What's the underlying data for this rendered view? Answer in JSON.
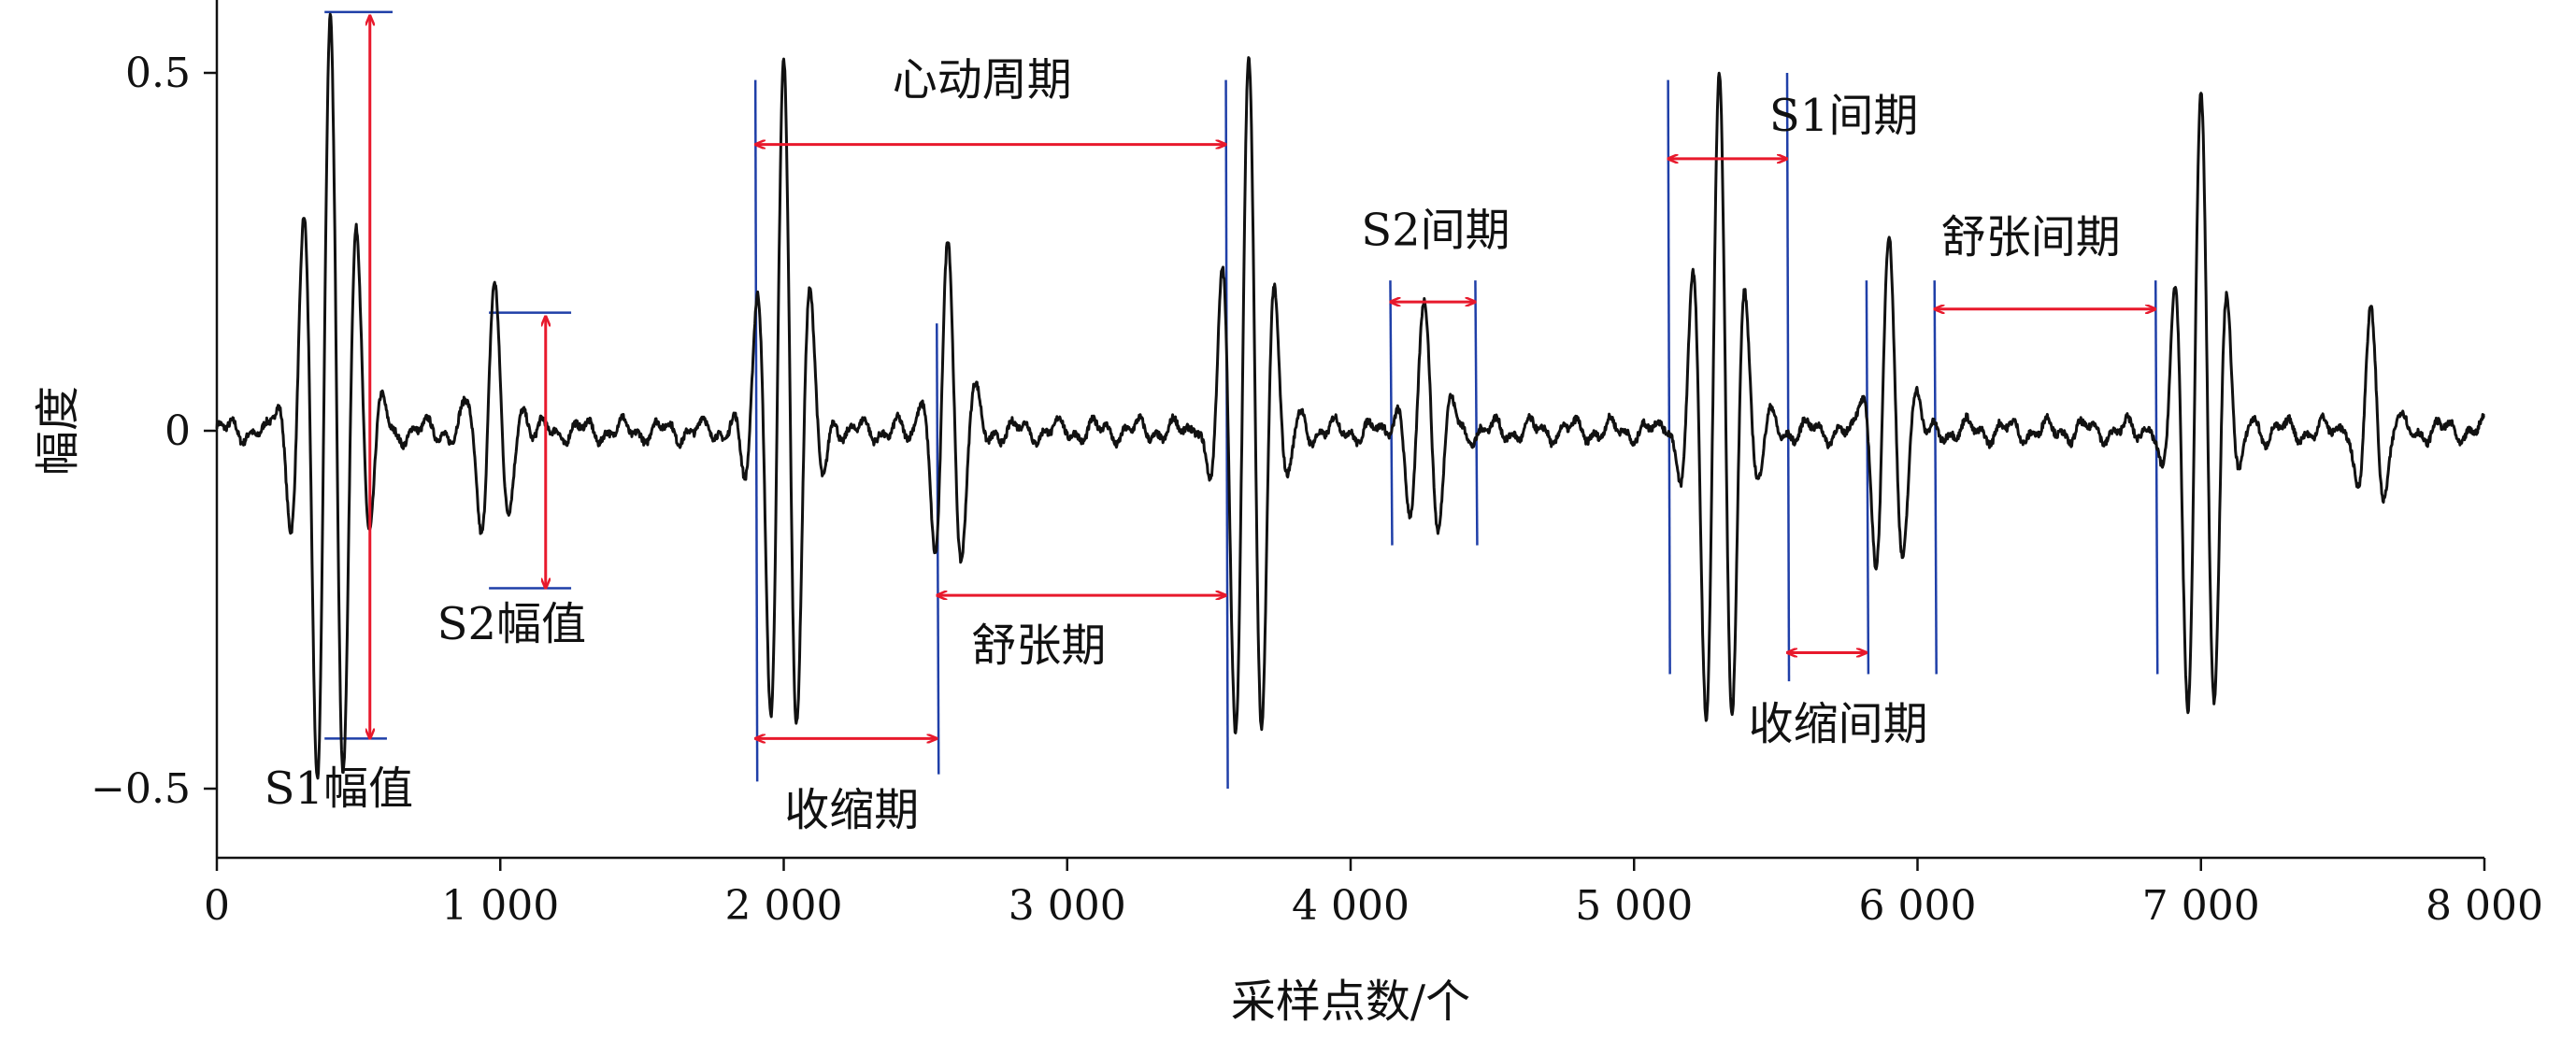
{
  "chart_data": {
    "type": "line",
    "title": "",
    "xlabel": "采样点数/个",
    "ylabel": "幅度",
    "xlim": [
      0,
      8000
    ],
    "ylim": [
      -0.6,
      0.6
    ],
    "x_ticks": [
      0,
      1000,
      2000,
      3000,
      4000,
      5000,
      6000,
      7000,
      8000
    ],
    "x_tick_labels": [
      "0",
      "1 000",
      "2 000",
      "3 000",
      "4 000",
      "5 000",
      "6 000",
      "7 000",
      "8 000"
    ],
    "y_ticks": [
      0.5,
      0,
      -0.5
    ],
    "y_tick_labels": [
      "0.5",
      "0",
      "−0.5"
    ],
    "grid": false,
    "colors": {
      "signal": "#111111",
      "annotation_arrow": "#e8192c",
      "boundary_line": "#1f3fa8",
      "axis": "#111111"
    },
    "series": [
      {
        "signal_events": [
          {
            "center": 400,
            "amplitude": 0.58,
            "frequency_hz": 0.0105,
            "width": 80,
            "kind": "S1"
          },
          {
            "center": 980,
            "amplitude": 0.2,
            "frequency_hz": 0.0095,
            "width": 55,
            "kind": "S2"
          },
          {
            "center": 2000,
            "amplitude": 0.5,
            "frequency_hz": 0.0105,
            "width": 70,
            "kind": "S1"
          },
          {
            "center": 2580,
            "amplitude": 0.26,
            "frequency_hz": 0.01,
            "width": 55,
            "kind": "S2"
          },
          {
            "center": 3640,
            "amplitude": 0.52,
            "frequency_hz": 0.0105,
            "width": 70,
            "kind": "S1"
          },
          {
            "center": 4260,
            "amplitude": 0.19,
            "frequency_hz": 0.0095,
            "width": 55,
            "kind": "S2"
          },
          {
            "center": 5300,
            "amplitude": 0.5,
            "frequency_hz": 0.0105,
            "width": 70,
            "kind": "S1"
          },
          {
            "center": 5900,
            "amplitude": 0.26,
            "frequency_hz": 0.01,
            "width": 55,
            "kind": "S2"
          },
          {
            "center": 7000,
            "amplitude": 0.47,
            "frequency_hz": 0.0105,
            "width": 70,
            "kind": "S1"
          },
          {
            "center": 7600,
            "amplitude": 0.16,
            "frequency_hz": 0.0095,
            "width": 45,
            "kind": "S2"
          }
        ]
      }
    ],
    "boundaries": [
      {
        "x": 1900,
        "y_top": 0.49,
        "y_bottom": -0.49
      },
      {
        "x": 2540,
        "y_top": 0.15,
        "y_bottom": -0.48
      },
      {
        "x": 3560,
        "y_top": 0.49,
        "y_bottom": -0.5
      },
      {
        "x": 4140,
        "y_top": 0.21,
        "y_bottom": -0.16
      },
      {
        "x": 4440,
        "y_top": 0.21,
        "y_bottom": -0.16
      },
      {
        "x": 5120,
        "y_top": 0.49,
        "y_bottom": -0.34
      },
      {
        "x": 5540,
        "y_top": 0.5,
        "y_bottom": -0.35
      },
      {
        "x": 5820,
        "y_top": 0.21,
        "y_bottom": -0.34
      },
      {
        "x": 6060,
        "y_top": 0.21,
        "y_bottom": -0.34
      },
      {
        "x": 6840,
        "y_top": 0.21,
        "y_bottom": -0.34
      }
    ],
    "annotations": [
      {
        "label": "心动周期",
        "arrow_from": [
          1900,
          0.4
        ],
        "arrow_to": [
          3560,
          0.4
        ],
        "label_at": [
          2700,
          0.49
        ]
      },
      {
        "label": "收缩期",
        "arrow_from": [
          1900,
          -0.43
        ],
        "arrow_to": [
          2540,
          -0.43
        ],
        "label_at": [
          2240,
          -0.53
        ]
      },
      {
        "label": "舒张期",
        "arrow_from": [
          2540,
          -0.23
        ],
        "arrow_to": [
          3560,
          -0.23
        ],
        "label_at": [
          2900,
          -0.3
        ]
      },
      {
        "label": "S2间期",
        "arrow_from": [
          4140,
          0.18
        ],
        "arrow_to": [
          4440,
          0.18
        ],
        "label_at": [
          4300,
          0.28
        ]
      },
      {
        "label": "S1间期",
        "arrow_from": [
          5120,
          0.38
        ],
        "arrow_to": [
          5540,
          0.38
        ],
        "label_at": [
          5740,
          0.44
        ]
      },
      {
        "label": "收缩间期",
        "arrow_from": [
          5540,
          -0.31
        ],
        "arrow_to": [
          5820,
          -0.31
        ],
        "label_at": [
          5720,
          -0.41
        ]
      },
      {
        "label": "舒张间期",
        "arrow_from": [
          6060,
          0.17
        ],
        "arrow_to": [
          6840,
          0.17
        ],
        "label_at": [
          6400,
          0.27
        ]
      },
      {
        "label": "S1幅值",
        "arrow_from": [
          540,
          0.58
        ],
        "arrow_to": [
          540,
          -0.43
        ],
        "label_at": [
          430,
          -0.5
        ]
      },
      {
        "label": "S2幅值",
        "arrow_from": [
          1160,
          0.16
        ],
        "arrow_to": [
          1160,
          -0.22
        ],
        "label_at": [
          1040,
          -0.27
        ]
      }
    ],
    "amplitude_markers": [
      {
        "x_from": 380,
        "x_to": 620,
        "y": 0.585
      },
      {
        "x_from": 380,
        "x_to": 600,
        "y": -0.43
      },
      {
        "x_from": 960,
        "x_to": 1250,
        "y": 0.165
      },
      {
        "x_from": 960,
        "x_to": 1250,
        "y": -0.22
      }
    ]
  }
}
